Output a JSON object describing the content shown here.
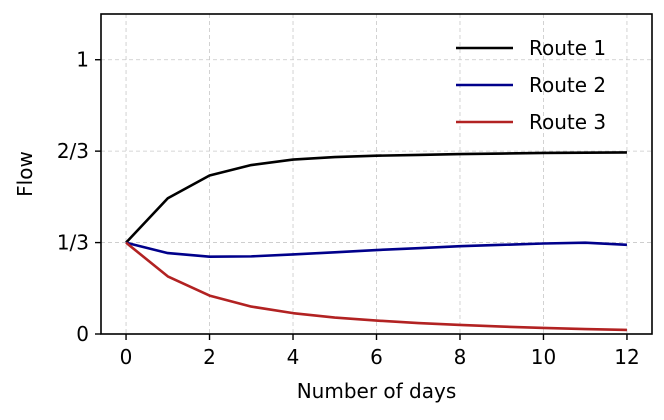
{
  "chart_data": {
    "type": "line",
    "xlabel": "Number of days",
    "ylabel": "Flow",
    "xlim": [
      -0.6,
      12.6
    ],
    "ylim": [
      0,
      1.1667
    ],
    "x_ticks": [
      0,
      2,
      4,
      6,
      8,
      10,
      12
    ],
    "x_tick_labels": [
      "0",
      "2",
      "4",
      "6",
      "8",
      "10",
      "12"
    ],
    "y_ticks": [
      0,
      0.3333,
      0.6667,
      1.0
    ],
    "y_tick_labels": [
      "0",
      "1/3",
      "2/3",
      "1"
    ],
    "grid": true,
    "legend_position": "top-right",
    "x": [
      0,
      1,
      2,
      3,
      4,
      5,
      6,
      7,
      8,
      9,
      10,
      11,
      12
    ],
    "series": [
      {
        "name": "Route 1",
        "color": "#000000",
        "values": [
          0.333,
          0.495,
          0.578,
          0.616,
          0.636,
          0.645,
          0.65,
          0.653,
          0.656,
          0.658,
          0.66,
          0.661,
          0.662
        ]
      },
      {
        "name": "Route 2",
        "color": "#00008b",
        "values": [
          0.333,
          0.295,
          0.282,
          0.283,
          0.29,
          0.298,
          0.306,
          0.313,
          0.32,
          0.325,
          0.33,
          0.333,
          0.325
        ]
      },
      {
        "name": "Route 3",
        "color": "#b22222",
        "values": [
          0.333,
          0.21,
          0.14,
          0.1,
          0.076,
          0.06,
          0.049,
          0.04,
          0.033,
          0.027,
          0.022,
          0.018,
          0.015
        ]
      }
    ]
  }
}
